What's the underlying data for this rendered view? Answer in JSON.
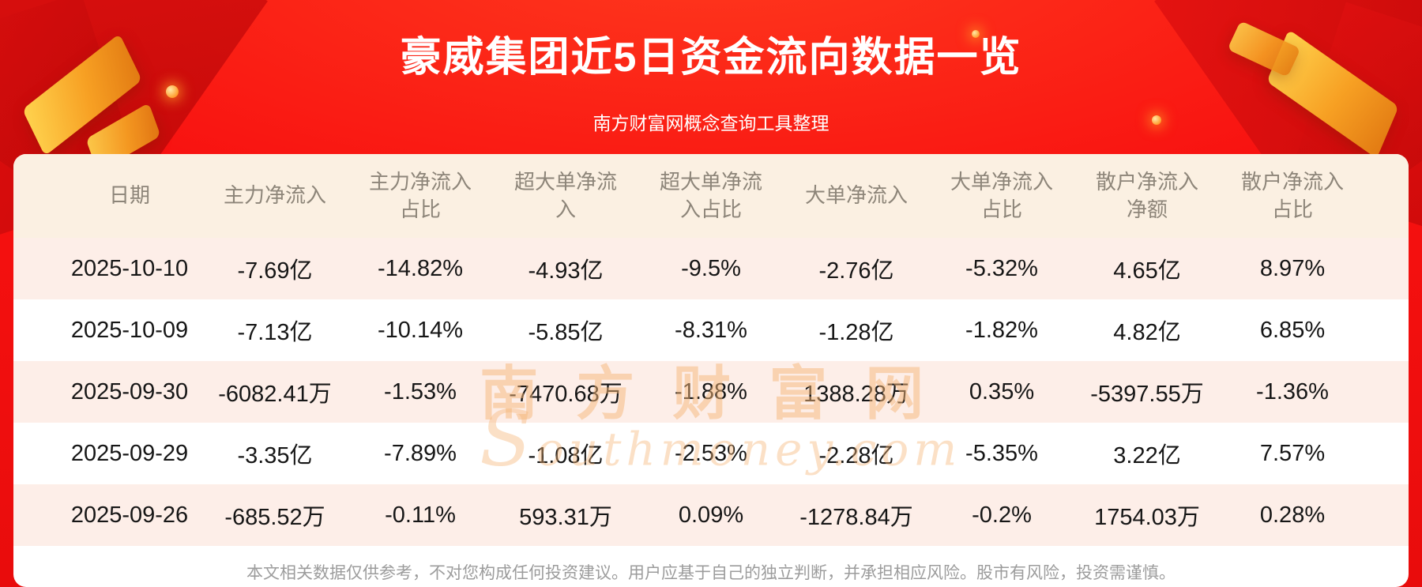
{
  "header": {
    "title": "豪威集团近5日资金流向数据一览",
    "subtitle": "南方财富网概念查询工具整理"
  },
  "chart_data": {
    "type": "table",
    "title": "豪威集团近5日资金流向数据一览",
    "subtitle": "南方财富网概念查询工具整理",
    "columns": [
      "日期",
      "主力净流入",
      "主力净流入占比",
      "超大单净流入",
      "超大单净流入占比",
      "大单净流入",
      "大单净流入占比",
      "散户净流入净额",
      "散户净流入占比"
    ],
    "rows": [
      [
        "2025-10-10",
        "-7.69亿",
        "-14.82%",
        "-4.93亿",
        "-9.5%",
        "-2.76亿",
        "-5.32%",
        "4.65亿",
        "8.97%"
      ],
      [
        "2025-10-09",
        "-7.13亿",
        "-10.14%",
        "-5.85亿",
        "-8.31%",
        "-1.28亿",
        "-1.82%",
        "4.82亿",
        "6.85%"
      ],
      [
        "2025-09-30",
        "-6082.41万",
        "-1.53%",
        "-7470.68万",
        "-1.88%",
        "1388.28万",
        "0.35%",
        "-5397.55万",
        "-1.36%"
      ],
      [
        "2025-09-29",
        "-3.35亿",
        "-7.89%",
        "-1.08亿",
        "-2.53%",
        "-2.28亿",
        "-5.35%",
        "3.22亿",
        "7.57%"
      ],
      [
        "2025-09-26",
        "-685.52万",
        "-0.11%",
        "593.31万",
        "0.09%",
        "-1278.84万",
        "-0.2%",
        "1754.03万",
        "0.28%"
      ]
    ]
  },
  "watermark": {
    "cn": "南方财富网",
    "en": "Southmoney.com"
  },
  "footer": {
    "disclaimer": "本文相关数据仅供参考，不对您构成任何投资建议。用户应基于自己的独立判断，并承担相应风险。股市有风险，投资需谨慎。"
  },
  "colors": {
    "accent_red": "#f81110",
    "gold": "#f7a023",
    "table_header_bg": "#fbf0e2",
    "row_alt_bg": "#fdeee8",
    "header_text": "#8d8579",
    "cell_text": "#161616",
    "disclaimer_text": "#9c9c9c",
    "watermark": "#f6b678"
  }
}
